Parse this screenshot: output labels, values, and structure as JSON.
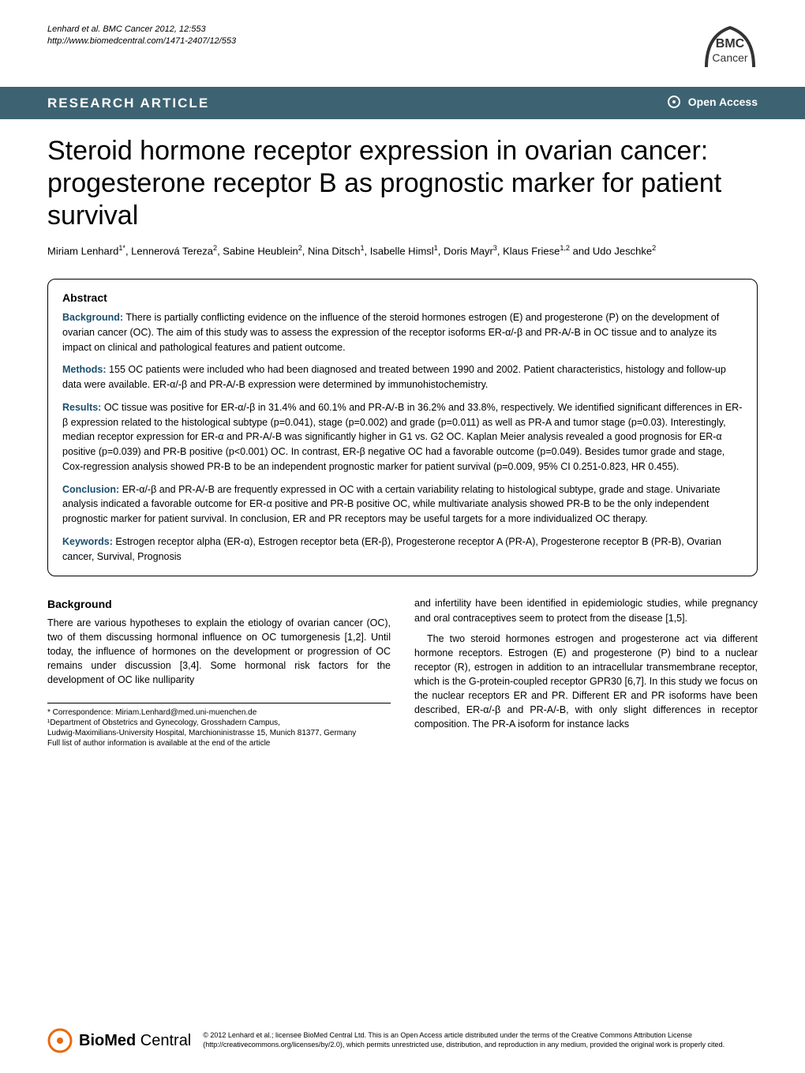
{
  "header": {
    "citation_line1": "Lenhard et al. BMC Cancer 2012, 12:553",
    "citation_line2": "http://www.biomedcentral.com/1471-2407/12/553",
    "logo_text_top": "BMC",
    "logo_text_bottom": "Cancer"
  },
  "banner": {
    "article_type": "RESEARCH ARTICLE",
    "access": "Open Access"
  },
  "title": "Steroid hormone receptor expression in ovarian cancer: progesterone receptor B as prognostic marker for patient survival",
  "authors_html": "Miriam Lenhard<sup>1*</sup>, Lennerová Tereza<sup>2</sup>, Sabine Heublein<sup>2</sup>, Nina Ditsch<sup>1</sup>, Isabelle Himsl<sup>1</sup>, Doris Mayr<sup>3</sup>, Klaus Friese<sup>1,2</sup> and Udo Jeschke<sup>2</sup>",
  "abstract": {
    "heading": "Abstract",
    "background_label": "Background:",
    "background": "There is partially conflicting evidence on the influence of the steroid hormones estrogen (E) and progesterone (P) on the development of ovarian cancer (OC). The aim of this study was to assess the expression of the receptor isoforms ER-α/-β and PR-A/-B in OC tissue and to analyze its impact on clinical and pathological features and patient outcome.",
    "methods_label": "Methods:",
    "methods": "155 OC patients were included who had been diagnosed and treated between 1990 and 2002. Patient characteristics, histology and follow-up data were available. ER-α/-β and PR-A/-B expression were determined by immunohistochemistry.",
    "results_label": "Results:",
    "results": "OC tissue was positive for ER-α/-β in 31.4% and 60.1% and PR-A/-B in 36.2% and 33.8%, respectively. We identified significant differences in ER-β expression related to the histological subtype (p=0.041), stage (p=0.002) and grade (p=0.011) as well as PR-A and tumor stage (p=0.03). Interestingly, median receptor expression for ER-α and PR-A/-B was significantly higher in G1 vs. G2 OC. Kaplan Meier analysis revealed a good prognosis for ER-α positive (p=0.039) and PR-B positive (p<0.001) OC. In contrast, ER-β negative OC had a favorable outcome (p=0.049). Besides tumor grade and stage, Cox-regression analysis showed PR-B to be an independent prognostic marker for patient survival (p=0.009, 95% CI 0.251-0.823, HR 0.455).",
    "conclusion_label": "Conclusion:",
    "conclusion": "ER-α/-β and PR-A/-B are frequently expressed in OC with a certain variability relating to histological subtype, grade and stage. Univariate analysis indicated a favorable outcome for ER-α positive and PR-B positive OC, while multivariate analysis showed PR-B to be the only independent prognostic marker for patient survival. In conclusion, ER and PR receptors may be useful targets for a more individualized OC therapy.",
    "keywords_label": "Keywords:",
    "keywords": "Estrogen receptor alpha (ER-α), Estrogen receptor beta (ER-β), Progesterone receptor A (PR-A), Progesterone receptor B (PR-B), Ovarian cancer, Survival, Prognosis"
  },
  "body": {
    "background_heading": "Background",
    "col1_para": "There are various hypotheses to explain the etiology of ovarian cancer (OC), two of them discussing hormonal influence on OC tumorgenesis [1,2]. Until today, the influence of hormones on the development or progression of OC remains under discussion [3,4]. Some hormonal risk factors for the development of OC like nulliparity",
    "col2_para1": "and infertility have been identified in epidemiologic studies, while pregnancy and oral contraceptives seem to protect from the disease [1,5].",
    "col2_para2": "The two steroid hormones estrogen and progesterone act via different hormone receptors. Estrogen (E) and progesterone (P) bind to a nuclear receptor (R), estrogen in addition to an intracellular transmembrane receptor, which is the G-protein-coupled receptor GPR30 [6,7]. In this study we focus on the nuclear receptors ER and PR. Different ER and PR isoforms have been described, ER-α/-β and PR-A/-B, with only slight differences in receptor composition. The PR-A isoform for instance lacks"
  },
  "footnotes": {
    "correspondence": "* Correspondence: Miriam.Lenhard@med.uni-muenchen.de",
    "affiliation1": "¹Department of Obstetrics and Gynecology, Grosshadern Campus,",
    "affiliation1b": "Ludwig-Maximilians-University Hospital, Marchioninistrasse 15, Munich 81377, Germany",
    "fulllist": "Full list of author information is available at the end of the article"
  },
  "footer": {
    "logo_text": "BioMed Central",
    "copyright": "© 2012 Lenhard et al.; licensee BioMed Central Ltd. This is an Open Access article distributed under the terms of the Creative Commons Attribution License (http://creativecommons.org/licenses/by/2.0), which permits unrestricted use, distribution, and reproduction in any medium, provided the original work is properly cited."
  },
  "colors": {
    "banner_bg": "#3d6372",
    "label_color": "#1a4e6e",
    "logo_orange": "#e8690b",
    "logo_dark": "#333333"
  }
}
